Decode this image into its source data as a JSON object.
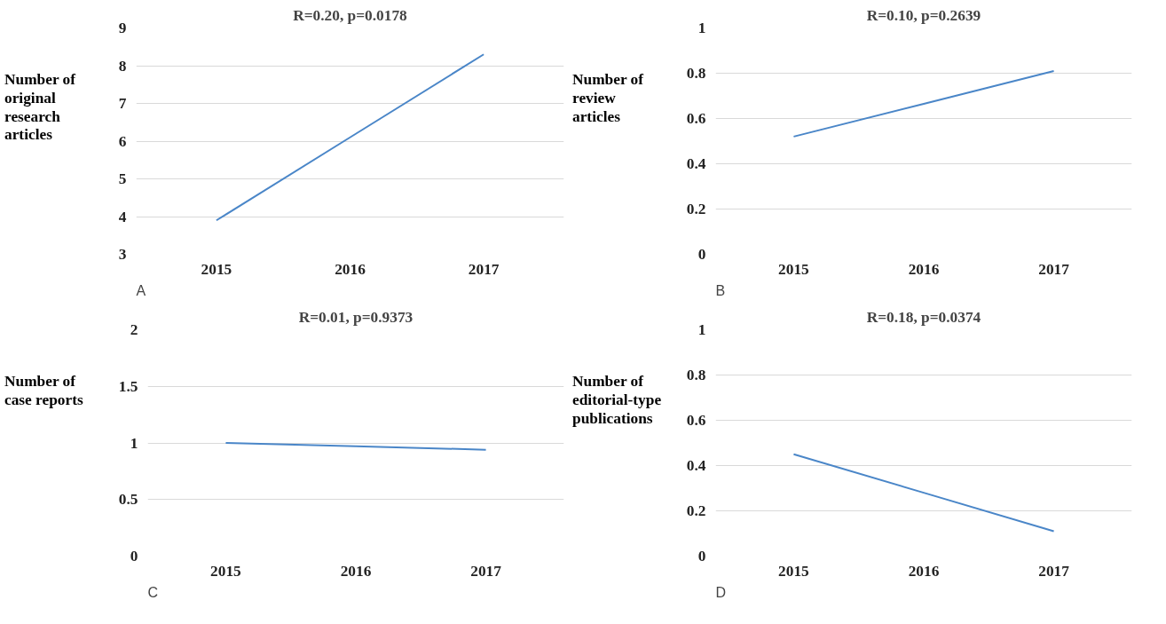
{
  "chart_data": [
    {
      "type": "line",
      "title": "R=0.20, p=0.0178",
      "ylabel": "Number of\noriginal\nresearch\narticles",
      "annotations": [
        "A"
      ],
      "categories": [
        "2015",
        "2016",
        "2017"
      ],
      "ylim": [
        3,
        9
      ],
      "yticks": [
        3,
        4,
        5,
        6,
        7,
        8,
        9
      ],
      "grid": "y",
      "series": [
        {
          "color": "#4a86c8",
          "values": [
            3.9,
            6.1,
            8.3
          ]
        }
      ]
    },
    {
      "type": "line",
      "title": "R=0.10, p=0.2639",
      "ylabel": "Number of\nreview\narticles",
      "annotations": [
        "B"
      ],
      "categories": [
        "2015",
        "2016",
        "2017"
      ],
      "ylim": [
        0,
        1
      ],
      "yticks": [
        0,
        0.2,
        0.4,
        0.6,
        0.8,
        1
      ],
      "grid": "y",
      "series": [
        {
          "color": "#4a86c8",
          "values": [
            0.52,
            0.665,
            0.81
          ]
        }
      ]
    },
    {
      "type": "line",
      "title": "R=0.01, p=0.9373",
      "ylabel": "Number of\ncase reports",
      "annotations": [
        "C"
      ],
      "categories": [
        "2015",
        "2016",
        "2017"
      ],
      "ylim": [
        0,
        2
      ],
      "yticks": [
        0,
        0.5,
        1,
        1.5,
        2
      ],
      "grid": "y",
      "series": [
        {
          "color": "#4a86c8",
          "values": [
            1.0,
            0.97,
            0.94
          ]
        }
      ]
    },
    {
      "type": "line",
      "title": "R=0.18, p=0.0374",
      "ylabel": "Number of\neditorial-type\npublications",
      "annotations": [
        "D"
      ],
      "categories": [
        "2015",
        "2016",
        "2017"
      ],
      "ylim": [
        0,
        1
      ],
      "yticks": [
        0,
        0.2,
        0.4,
        0.6,
        0.8,
        1
      ],
      "grid": "y",
      "series": [
        {
          "color": "#4a86c8",
          "values": [
            0.45,
            0.28,
            0.11
          ]
        }
      ]
    }
  ]
}
